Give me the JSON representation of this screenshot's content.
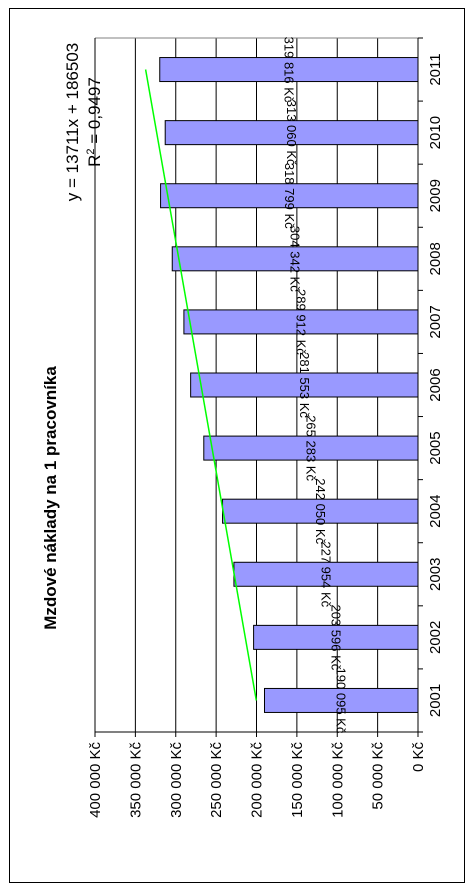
{
  "chart_data": {
    "type": "bar",
    "orientation": "rotated-90",
    "title": "Mzdové náklady na 1 pracovníka",
    "categories": [
      "2001",
      "2002",
      "2003",
      "2004",
      "2005",
      "2006",
      "2007",
      "2008",
      "2009",
      "2010",
      "2011"
    ],
    "values": [
      190095,
      203596,
      227954,
      242050,
      265283,
      281553,
      289912,
      304342,
      318799,
      313060,
      319816
    ],
    "value_labels": [
      "190 095 Kč",
      "203 596 Kč",
      "227 954 Kč",
      "242 050 Kč",
      "265 283 Kč",
      "281 553 Kč",
      "289 912 Kč",
      "304 342 Kč",
      "318 799 Kč",
      "313 060 Kč",
      "319 816 Kč"
    ],
    "ylim": [
      0,
      400000
    ],
    "y_ticks": [
      0,
      50000,
      100000,
      150000,
      200000,
      250000,
      300000,
      350000,
      400000
    ],
    "y_tick_labels": [
      "0 Kč",
      "50 000 Kč",
      "100 000 Kč",
      "150 000 Kč",
      "200 000 Kč",
      "250 000 Kč",
      "300 000 Kč",
      "350 000 Kč",
      "400 000 Kč"
    ],
    "trendline": {
      "type": "linear",
      "slope": 13711,
      "intercept": 186503,
      "equation": "y = 13711x + 186503",
      "r2_prefix": "R",
      "r2_sup": "2",
      "r2_rest": " = 0,9497"
    },
    "grid": true,
    "colors": {
      "bar": "#9999ff",
      "trend": "#00ff00",
      "grid": "#000000"
    }
  }
}
